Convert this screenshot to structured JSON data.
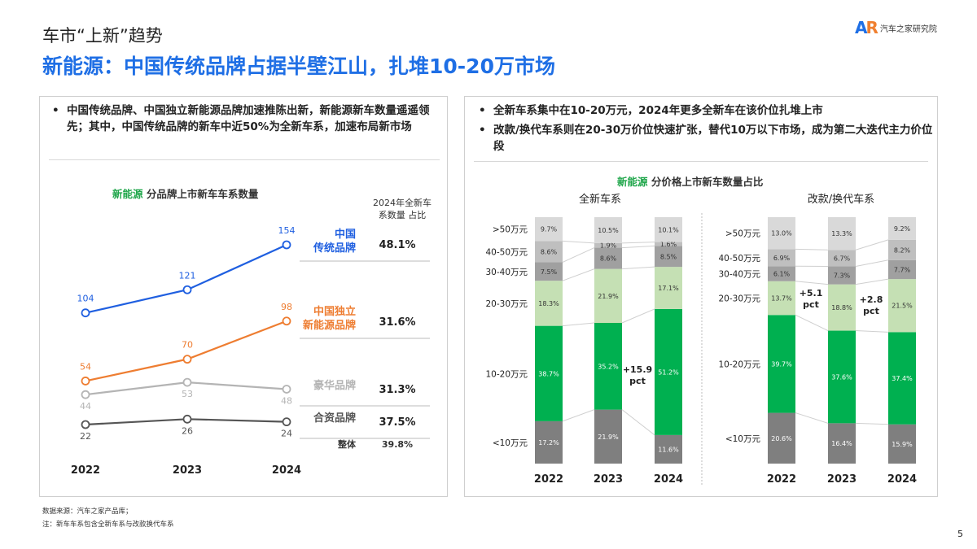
{
  "header": {
    "subtitle": "车市“上新”趋势",
    "title": "新能源：中国传统品牌占据半壁江山，扎堆10-20万市场",
    "logo_mark": "AR",
    "logo_text": "汽车之家研究院"
  },
  "left_panel": {
    "bullet": "中国传统品牌、中国独立新能源品牌加速推陈出新，新能源新车数量遥遥领先；其中，中国传统品牌的新车中近50%为全新车系，加速布局新市场",
    "chart_title_highlight": "新能源",
    "chart_title_rest": " 分品牌上市新车车系数量",
    "share_header": "2024年全新车系数量 占比",
    "total_label": "整体",
    "total_value": "39.8%"
  },
  "right_panel": {
    "bullets": [
      "全新车系集中在10-20万元，2024年更多全新车在该价位扎堆上市",
      "改款/换代车系则在20-30万价位快速扩张，替代10万以下市场，成为第二大迭代主力价位段"
    ],
    "chart_title_highlight": "新能源",
    "chart_title_rest": " 分价格上市新车数量占比"
  },
  "chart_data": [
    {
      "type": "line",
      "title": "新能源 分品牌上市新车车系数量",
      "categories": [
        "2022",
        "2023",
        "2024"
      ],
      "series": [
        {
          "name": "中国传统品牌",
          "values": [
            104,
            121,
            154
          ],
          "share_2024": "48.1%",
          "color": "#1f5fe0"
        },
        {
          "name": "中国独立新能源品牌",
          "values": [
            54,
            70,
            98
          ],
          "share_2024": "31.6%",
          "color": "#ee7d31"
        },
        {
          "name": "豪华品牌",
          "values": [
            44,
            53,
            48
          ],
          "share_2024": "31.3%",
          "color": "#b4b4b4"
        },
        {
          "name": "合资品牌",
          "values": [
            22,
            26,
            24
          ],
          "share_2024": "37.5%",
          "color": "#555555"
        }
      ]
    },
    {
      "type": "bar",
      "stacked": true,
      "title": "全新车系",
      "categories": [
        "2022",
        "2023",
        "2024"
      ],
      "segments": [
        "<10万元",
        "10-20万元",
        "20-30万元",
        "30-40万元",
        "40-50万元",
        ">50万元"
      ],
      "values": [
        [
          17.2,
          38.7,
          18.3,
          7.5,
          8.6,
          9.7
        ],
        [
          21.9,
          35.2,
          21.9,
          8.6,
          1.9,
          10.5
        ],
        [
          11.6,
          51.2,
          17.1,
          8.5,
          1.6,
          10.1
        ]
      ],
      "annotations": [
        {
          "text": "+15.9 pct",
          "between": [
            "2023",
            "2024"
          ]
        }
      ]
    },
    {
      "type": "bar",
      "stacked": true,
      "title": "改款/换代车系",
      "categories": [
        "2022",
        "2023",
        "2024"
      ],
      "segments": [
        "<10万元",
        "10-20万元",
        "20-30万元",
        "30-40万元",
        "40-50万元",
        ">50万元"
      ],
      "values": [
        [
          20.6,
          39.7,
          13.7,
          6.1,
          6.9,
          13.0
        ],
        [
          16.4,
          37.6,
          18.8,
          7.3,
          6.7,
          13.3
        ],
        [
          15.9,
          37.4,
          21.5,
          7.7,
          8.2,
          9.2
        ]
      ],
      "annotations": [
        {
          "text": "+5.1 pct",
          "between": [
            "2022",
            "2023"
          ]
        },
        {
          "text": "+2.8 pct",
          "between": [
            "2023",
            "2024"
          ]
        }
      ]
    }
  ],
  "segment_colors": [
    "#7f7f7f",
    "#00b050",
    "#c5e0b4",
    "#a0a0a0",
    "#bfbfbf",
    "#d9d9d9"
  ],
  "footer": {
    "source": "数据来源：汽车之家产品库；",
    "note": "注：新车车系包含全新车系与改款换代车系",
    "page": "5"
  }
}
